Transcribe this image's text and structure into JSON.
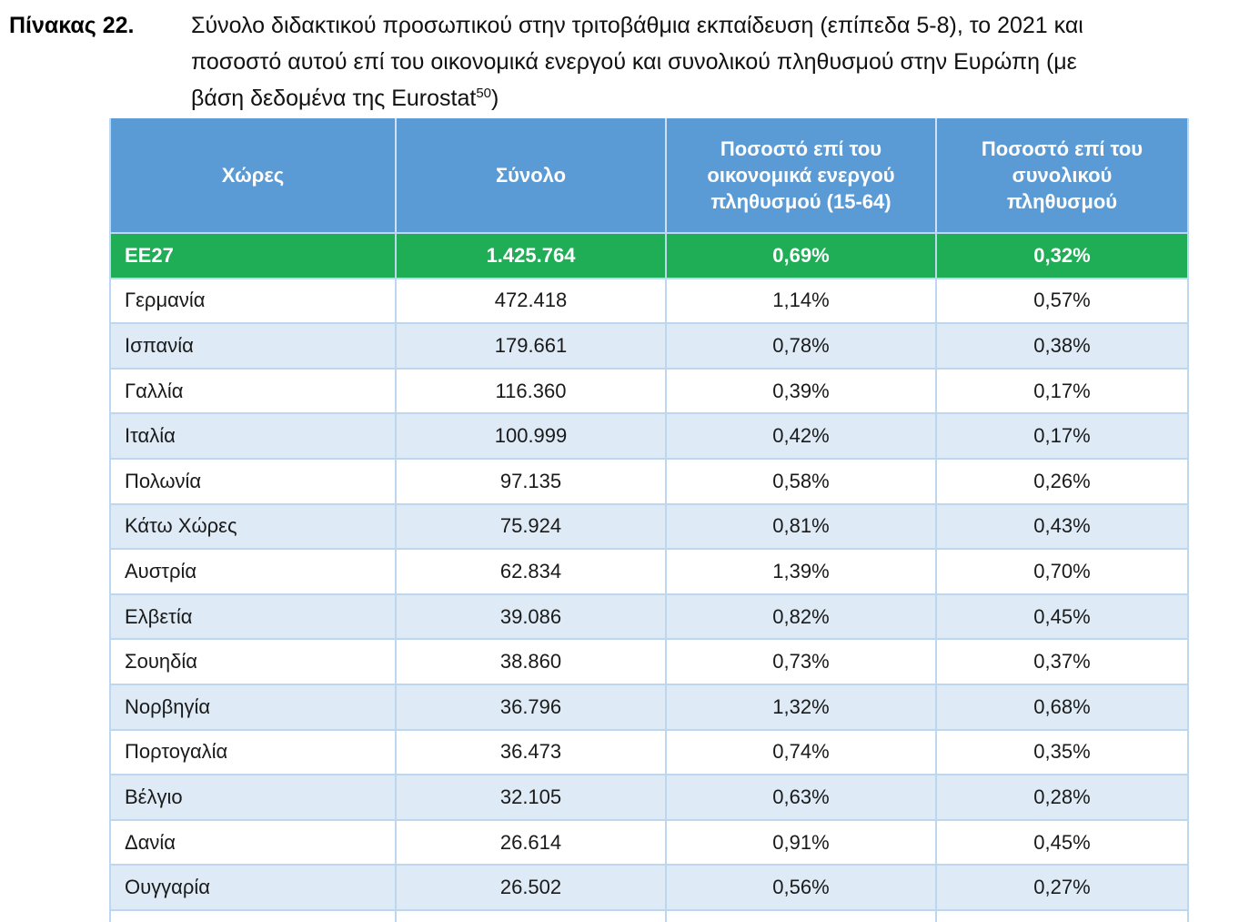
{
  "caption": {
    "label": "Πίνακας 22.",
    "line1": "Σύνολο διδακτικού προσωπικού στην τριτοβάθμια εκπαίδευση (επίπεδα 5-8), το 2021 και",
    "line2": "ποσοστό αυτού επί του οικονομικά ενεργού και συνολικού πληθυσμού στην Ευρώπη (με",
    "line3_prefix": "βάση δεδομένα της Eurostat",
    "footnote_marker": "50",
    "line3_suffix": ")"
  },
  "table": {
    "headers": {
      "countries": "Χώρες",
      "total": "Σύνολο",
      "pct_active": "Ποσοστό επί του\nοικονομικά ενεργού\nπληθυσμού (15-64)",
      "pct_population": "Ποσοστό επί του\nσυνολικού\nπληθυσμού"
    },
    "rows": [
      {
        "country": "EE27",
        "total": "1.425.764",
        "pct_active": "0,69%",
        "pct_total": "0,32%",
        "highlight": true
      },
      {
        "country": "Γερμανία",
        "total": "472.418",
        "pct_active": "1,14%",
        "pct_total": "0,57%"
      },
      {
        "country": "Ισπανία",
        "total": "179.661",
        "pct_active": "0,78%",
        "pct_total": "0,38%"
      },
      {
        "country": "Γαλλία",
        "total": "116.360",
        "pct_active": "0,39%",
        "pct_total": "0,17%"
      },
      {
        "country": "Ιταλία",
        "total": "100.999",
        "pct_active": "0,42%",
        "pct_total": "0,17%"
      },
      {
        "country": "Πολωνία",
        "total": "97.135",
        "pct_active": "0,58%",
        "pct_total": "0,26%"
      },
      {
        "country": "Κάτω Χώρες",
        "total": "75.924",
        "pct_active": "0,81%",
        "pct_total": "0,43%"
      },
      {
        "country": "Αυστρία",
        "total": "62.834",
        "pct_active": "1,39%",
        "pct_total": "0,70%"
      },
      {
        "country": "Ελβετία",
        "total": "39.086",
        "pct_active": "0,82%",
        "pct_total": "0,45%"
      },
      {
        "country": "Σουηδία",
        "total": "38.860",
        "pct_active": "0,73%",
        "pct_total": "0,37%"
      },
      {
        "country": "Νορβηγία",
        "total": "36.796",
        "pct_active": "1,32%",
        "pct_total": "0,68%"
      },
      {
        "country": "Πορτογαλία",
        "total": "36.473",
        "pct_active": "0,74%",
        "pct_total": "0,35%"
      },
      {
        "country": "Βέλγιο",
        "total": "32.105",
        "pct_active": "0,63%",
        "pct_total": "0,28%"
      },
      {
        "country": "Δανία",
        "total": "26.614",
        "pct_active": "0,91%",
        "pct_total": "0,45%"
      },
      {
        "country": "Ουγγαρία",
        "total": "26.502",
        "pct_active": "0,56%",
        "pct_total": "0,27%"
      }
    ]
  },
  "colors": {
    "header_bg": "#5B9BD5",
    "highlight_bg": "#1FAD55",
    "row_alt_bg": "#DEEBF6",
    "row_bg": "#FFFFFF",
    "border": "#BDD7EE",
    "header_text": "#FFFFFF",
    "body_text": "#1A1A1A"
  }
}
